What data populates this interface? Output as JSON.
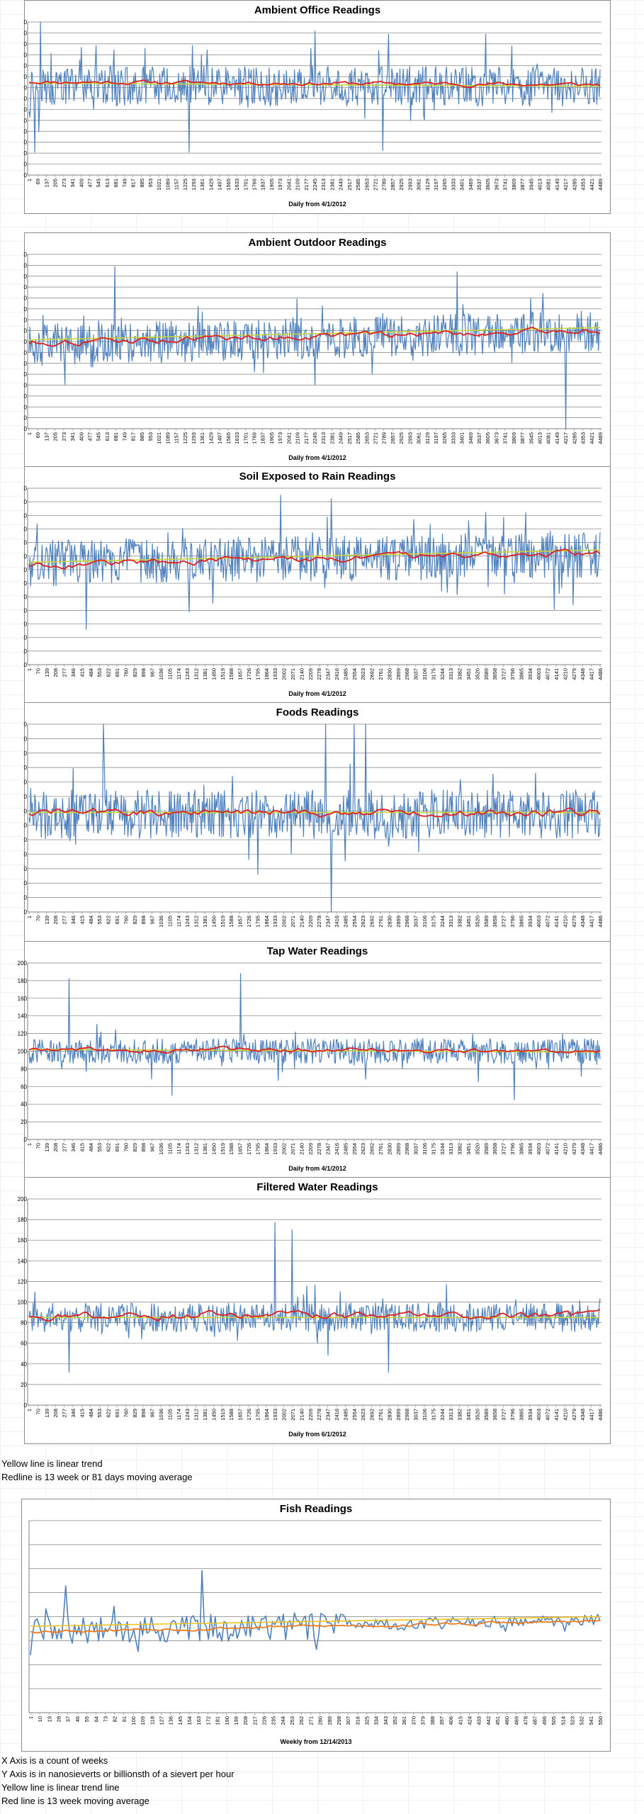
{
  "colors": {
    "series": "#4f81bd",
    "moving_average": "#e0201b",
    "trend": "#c8d43a",
    "trend_fish": "#f0c419",
    "ma_fish": "#f07a18",
    "grid": "#7f7f7f"
  },
  "notes_middle": [
    "Yellow line is linear trend",
    "Redline is 13 week or 81 days moving average"
  ],
  "notes_bottom": [
    "X Axis is a count of weeks",
    "Y Axis is in nanosieverts or billionsth of a sievert per hour",
    "Yellow line is linear trend line",
    "Red line is 13 week moving average"
  ],
  "chart_data": [
    {
      "type": "line",
      "title": "Ambient Office Readings",
      "xlabel": "Daily from 4/1/2012",
      "ylabel": "",
      "ytick_labels": [
        "0",
        "0",
        "0",
        "0",
        "0",
        "0",
        "0",
        "0",
        "0",
        "0",
        "0",
        "0",
        "0",
        "0",
        "0"
      ],
      "xtick_labels": [
        "1",
        "69",
        "137",
        "205",
        "273",
        "341",
        "409",
        "477",
        "545",
        "613",
        "681",
        "749",
        "817",
        "885",
        "953",
        "1021",
        "1089",
        "1157",
        "1225",
        "1293",
        "1361",
        "1429",
        "1497",
        "1565",
        "1633",
        "1701",
        "1769",
        "1837",
        "1905",
        "1973",
        "2041",
        "2109",
        "2177",
        "2245",
        "2313",
        "2381",
        "2449",
        "2517",
        "2585",
        "2653",
        "2721",
        "2789",
        "2857",
        "2925",
        "2993",
        "3061",
        "3129",
        "3197",
        "3265",
        "3333",
        "3401",
        "3469",
        "3537",
        "3605",
        "3673",
        "3741",
        "3809",
        "3877",
        "3945",
        "4013",
        "4081",
        "4149",
        "4217",
        "4285",
        "4353",
        "4421",
        "4489"
      ],
      "grid": true,
      "series": [
        {
          "level": 0.58,
          "spread": 0.13,
          "peak": 0.2,
          "drift": 0.0,
          "spikes": [
            [
              0.02,
              1.0
            ],
            [
              0.5,
              0.94
            ],
            [
              0.63,
              0.92
            ],
            [
              0.8,
              0.92
            ]
          ],
          "dips": [
            [
              0.01,
              0.15
            ],
            [
              0.28,
              0.15
            ],
            [
              0.62,
              0.16
            ]
          ]
        }
      ],
      "moving_average": {
        "level": 0.6,
        "wave": 0.015
      },
      "trend": [
        0.6,
        0.58
      ]
    },
    {
      "type": "line",
      "title": "Ambient Outdoor Readings",
      "xlabel": "Daily from 4/1/2012",
      "ylabel": "",
      "ytick_labels": [
        "0",
        "0",
        "0",
        "0",
        "0",
        "0",
        "0",
        "0",
        "0",
        "0",
        "0",
        "0",
        "0",
        "0",
        "0",
        "0",
        "0"
      ],
      "xtick_labels": [
        "1",
        "69",
        "137",
        "205",
        "273",
        "341",
        "409",
        "477",
        "545",
        "613",
        "681",
        "749",
        "817",
        "885",
        "953",
        "1021",
        "1089",
        "1157",
        "1225",
        "1293",
        "1361",
        "1429",
        "1497",
        "1565",
        "1633",
        "1701",
        "1769",
        "1837",
        "1905",
        "1973",
        "2041",
        "2109",
        "2177",
        "2245",
        "2313",
        "2381",
        "2449",
        "2517",
        "2585",
        "2653",
        "2721",
        "2789",
        "2857",
        "2925",
        "2993",
        "3061",
        "3129",
        "3197",
        "3265",
        "3333",
        "3401",
        "3469",
        "3537",
        "3605",
        "3673",
        "3741",
        "3809",
        "3877",
        "3945",
        "4013",
        "4081",
        "4149",
        "4217",
        "4285",
        "4353",
        "4421",
        "4489"
      ],
      "grid": true,
      "series": [
        {
          "level": 0.52,
          "spread": 0.12,
          "peak": 0.18,
          "drift": 0.08,
          "spikes": [
            [
              0.15,
              0.93
            ],
            [
              0.75,
              0.9
            ]
          ],
          "dips": [
            [
              0.94,
              0.0
            ],
            [
              0.5,
              0.25
            ]
          ]
        }
      ],
      "moving_average": {
        "level": 0.53,
        "wave": 0.02
      },
      "trend": [
        0.51,
        0.58
      ]
    },
    {
      "type": "line",
      "title": "Soil Exposed to Rain Readings",
      "xlabel": "Daily from 4/1/2012",
      "ylabel": "",
      "ytick_labels": [
        "0",
        "0",
        "0",
        "0",
        "0",
        "0",
        "0",
        "0",
        "0",
        "0",
        "0",
        "0",
        "0",
        "0"
      ],
      "xtick_labels": [
        "1",
        "70",
        "139",
        "208",
        "277",
        "346",
        "415",
        "484",
        "553",
        "622",
        "691",
        "760",
        "829",
        "898",
        "967",
        "1036",
        "1105",
        "1174",
        "1243",
        "1312",
        "1381",
        "1450",
        "1519",
        "1588",
        "1657",
        "1726",
        "1795",
        "1864",
        "1933",
        "2002",
        "2071",
        "2140",
        "2209",
        "2278",
        "2347",
        "2416",
        "2485",
        "2554",
        "2623",
        "2692",
        "2761",
        "2830",
        "2899",
        "2968",
        "3037",
        "3106",
        "3175",
        "3244",
        "3313",
        "3382",
        "3451",
        "3520",
        "3589",
        "3658",
        "3727",
        "3796",
        "3865",
        "3934",
        "4003",
        "4072",
        "4141",
        "4210",
        "4279",
        "4348",
        "4417",
        "4486"
      ],
      "grid": true,
      "series": [
        {
          "level": 0.6,
          "spread": 0.13,
          "peak": 0.2,
          "drift": 0.05,
          "spikes": [
            [
              0.44,
              0.96
            ],
            [
              0.53,
              0.94
            ]
          ],
          "dips": [
            [
              0.1,
              0.2
            ]
          ]
        }
      ],
      "moving_average": {
        "level": 0.6,
        "wave": 0.02
      },
      "trend": [
        0.58,
        0.65
      ]
    },
    {
      "type": "line",
      "title": "Foods Readings",
      "xlabel": "",
      "ylabel": "",
      "ytick_labels": [
        "0",
        "0",
        "0",
        "0",
        "0",
        "0",
        "0",
        "0",
        "0",
        "0",
        "0",
        "0",
        "0",
        "0"
      ],
      "xtick_labels": [
        "1",
        "70",
        "139",
        "208",
        "277",
        "346",
        "415",
        "484",
        "553",
        "622",
        "691",
        "760",
        "829",
        "898",
        "967",
        "1036",
        "1105",
        "1174",
        "1243",
        "1312",
        "1381",
        "1450",
        "1519",
        "1588",
        "1657",
        "1726",
        "1795",
        "1864",
        "1933",
        "2002",
        "2071",
        "2140",
        "2209",
        "2278",
        "2347",
        "2416",
        "2485",
        "2554",
        "2623",
        "2692",
        "2761",
        "2830",
        "2899",
        "2968",
        "3037",
        "3106",
        "3175",
        "3244",
        "3313",
        "3382",
        "3451",
        "3520",
        "3589",
        "3658",
        "3727",
        "3796",
        "3865",
        "3934",
        "4003",
        "4072",
        "4141",
        "4210",
        "4279",
        "4348",
        "4417",
        "4486"
      ],
      "grid": true,
      "series": [
        {
          "level": 0.52,
          "spread": 0.13,
          "peak": 0.2,
          "drift": 0.0,
          "spikes": [
            [
              0.13,
              1.0
            ],
            [
              0.52,
              1.0
            ],
            [
              0.57,
              1.0
            ],
            [
              0.59,
              1.0
            ]
          ],
          "dips": [
            [
              0.53,
              0.0
            ],
            [
              0.4,
              0.2
            ]
          ]
        }
      ],
      "moving_average": {
        "level": 0.53,
        "wave": 0.025
      },
      "trend": [
        0.53,
        0.53
      ]
    },
    {
      "type": "line",
      "title": "Tap Water Readings",
      "xlabel": "Daily from 4/1/2012",
      "ylabel": "",
      "ytick_labels": [
        "0",
        "20",
        "40",
        "60",
        "80",
        "100",
        "120",
        "140",
        "160",
        "180",
        "200"
      ],
      "xtick_labels": [
        "1",
        "70",
        "139",
        "208",
        "277",
        "346",
        "415",
        "484",
        "553",
        "622",
        "691",
        "760",
        "829",
        "898",
        "967",
        "1036",
        "1105",
        "1174",
        "1243",
        "1312",
        "1381",
        "1450",
        "1519",
        "1588",
        "1657",
        "1726",
        "1795",
        "1864",
        "1933",
        "2002",
        "2071",
        "2140",
        "2209",
        "2278",
        "2347",
        "2416",
        "2485",
        "2554",
        "2623",
        "2692",
        "2761",
        "2830",
        "2899",
        "2968",
        "3037",
        "3106",
        "3175",
        "3244",
        "3313",
        "3382",
        "3451",
        "3520",
        "3589",
        "3658",
        "3727",
        "3796",
        "3865",
        "3934",
        "4003",
        "4072",
        "4141",
        "4210",
        "4279",
        "4348",
        "4417",
        "4486"
      ],
      "grid": true,
      "ylim": [
        0,
        200
      ],
      "series": [
        {
          "level": 100,
          "spread": 14,
          "peak": 25,
          "drift": 0,
          "spikes": [
            [
              0.07,
              182
            ],
            [
              0.37,
              188
            ]
          ],
          "dips": [
            [
              0.25,
              50
            ],
            [
              0.85,
              45
            ]
          ]
        }
      ],
      "moving_average": {
        "level": 101,
        "wave": 3
      },
      "trend": [
        102,
        99
      ]
    },
    {
      "type": "line",
      "title": "Filtered Water Readings",
      "xlabel": "Daily from 6/1/2012",
      "ylabel": "",
      "ytick_labels": [
        "0",
        "20",
        "40",
        "60",
        "80",
        "100",
        "120",
        "140",
        "160",
        "180",
        "200"
      ],
      "xtick_labels": [
        "1",
        "70",
        "139",
        "208",
        "277",
        "346",
        "415",
        "484",
        "553",
        "622",
        "691",
        "760",
        "829",
        "898",
        "967",
        "1036",
        "1105",
        "1174",
        "1243",
        "1312",
        "1381",
        "1450",
        "1519",
        "1588",
        "1657",
        "1726",
        "1795",
        "1864",
        "1933",
        "2002",
        "2071",
        "2140",
        "2209",
        "2278",
        "2347",
        "2416",
        "2485",
        "2554",
        "2623",
        "2692",
        "2761",
        "2830",
        "2899",
        "2968",
        "3037",
        "3106",
        "3175",
        "3244",
        "3313",
        "3382",
        "3451",
        "3520",
        "3589",
        "3658",
        "3727",
        "3796",
        "3865",
        "3934",
        "4003",
        "4072",
        "4141",
        "4210",
        "4279",
        "4348",
        "4417",
        "4486"
      ],
      "grid": true,
      "ylim": [
        0,
        200
      ],
      "series": [
        {
          "level": 85,
          "spread": 14,
          "peak": 25,
          "drift": 0,
          "spikes": [
            [
              0.43,
              177
            ],
            [
              0.46,
              170
            ]
          ],
          "dips": [
            [
              0.07,
              32
            ],
            [
              0.63,
              32
            ]
          ]
        }
      ],
      "moving_average": {
        "level": 87,
        "wave": 4
      },
      "trend": [
        85,
        85
      ]
    },
    {
      "type": "line",
      "title": "Fish Readings",
      "xlabel": "Weekly from 12/14/2013",
      "ylabel": "",
      "ytick_labels": [],
      "xtick_labels": [
        "1",
        "10",
        "19",
        "28",
        "37",
        "46",
        "55",
        "64",
        "73",
        "82",
        "91",
        "100",
        "109",
        "118",
        "127",
        "136",
        "145",
        "154",
        "163",
        "172",
        "181",
        "190",
        "199",
        "208",
        "217",
        "226",
        "235",
        "244",
        "253",
        "262",
        "271",
        "280",
        "289",
        "298",
        "307",
        "316",
        "325",
        "334",
        "343",
        "352",
        "361",
        "370",
        "379",
        "388",
        "397",
        "406",
        "415",
        "424",
        "433",
        "442",
        "451",
        "460",
        "469",
        "478",
        "487",
        "496",
        "505",
        "514",
        "523",
        "532",
        "541",
        "550"
      ],
      "grid": true,
      "series": [
        {
          "level": 0.45,
          "spread": 0.07,
          "peak": 0.11,
          "drift": 0.05,
          "spikes": [
            [
              0.06,
              0.66
            ],
            [
              0.3,
              0.74
            ]
          ],
          "dips": [
            [
              0.0,
              0.3
            ],
            [
              0.5,
              0.33
            ]
          ]
        }
      ],
      "moving_average": {
        "level": 0.45,
        "wave": 0.01
      },
      "trend": [
        0.45,
        0.5
      ]
    }
  ]
}
